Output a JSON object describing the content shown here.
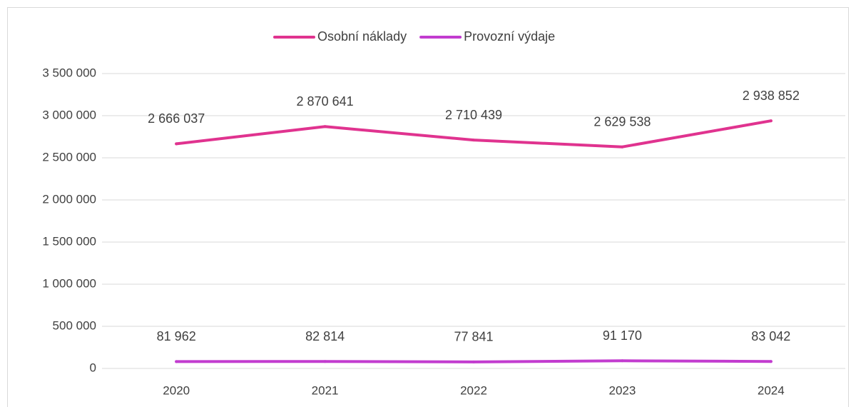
{
  "chart_data": {
    "type": "line",
    "categories": [
      "2020",
      "2021",
      "2022",
      "2023",
      "2024"
    ],
    "series": [
      {
        "name": "Osobní náklady",
        "color": "#e0338f",
        "values": [
          2666037,
          2870641,
          2710439,
          2629538,
          2938852
        ],
        "value_labels": [
          "2 666 037",
          "2 870 641",
          "2 710 439",
          "2 629 538",
          "2 938 852"
        ]
      },
      {
        "name": "Provozní výdaje",
        "color": "#c23ccf",
        "values": [
          81962,
          82814,
          77841,
          91170,
          83042
        ],
        "value_labels": [
          "81 962",
          "82 814",
          "77 841",
          "91 170",
          "83 042"
        ]
      }
    ],
    "ylim": [
      0,
      3500000
    ],
    "yticks": [
      0,
      {
        "value": 500000,
        "label": "500 000"
      },
      {
        "value": 1000000,
        "label": "1 000 000"
      },
      {
        "value": 1500000,
        "label": "1 500 000"
      },
      {
        "value": 2000000,
        "label": "2 000 000"
      },
      {
        "value": 2500000,
        "label": "2 500 000"
      },
      {
        "value": 3000000,
        "label": "3 000 000"
      },
      {
        "value": 3500000,
        "label": "3 500 000"
      }
    ],
    "grid": true,
    "legend": "top"
  }
}
